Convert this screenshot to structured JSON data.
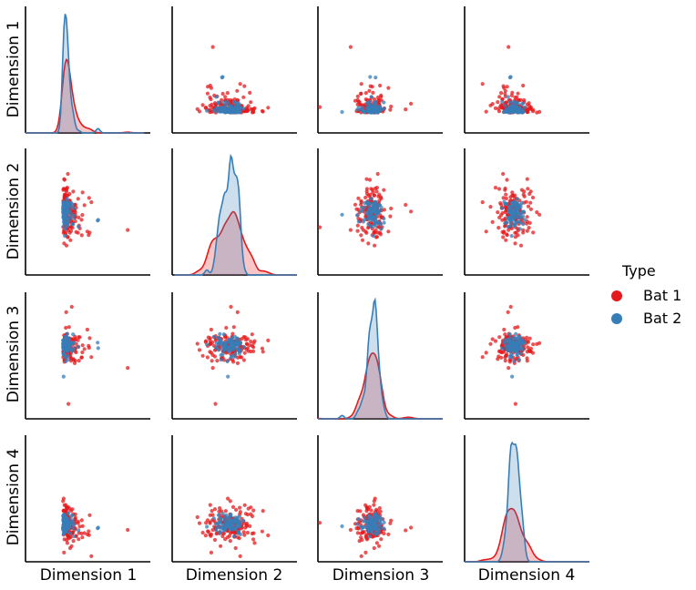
{
  "chart_data": {
    "type": "scatter",
    "variables": [
      "Dimension 1",
      "Dimension 2",
      "Dimension 3",
      "Dimension 4"
    ],
    "diagonal": "kde",
    "legend": {
      "title": "Type",
      "placement": "right",
      "entries": [
        {
          "label": "Bat 1",
          "color": "#e41a1c"
        },
        {
          "label": "Bat 2",
          "color": "#377eb8"
        }
      ]
    },
    "series": [
      {
        "name": "Bat 1",
        "color": "#e41a1c"
      },
      {
        "name": "Bat 2",
        "color": "#377eb8"
      }
    ],
    "axis_ticks": "hidden",
    "grid": false
  }
}
